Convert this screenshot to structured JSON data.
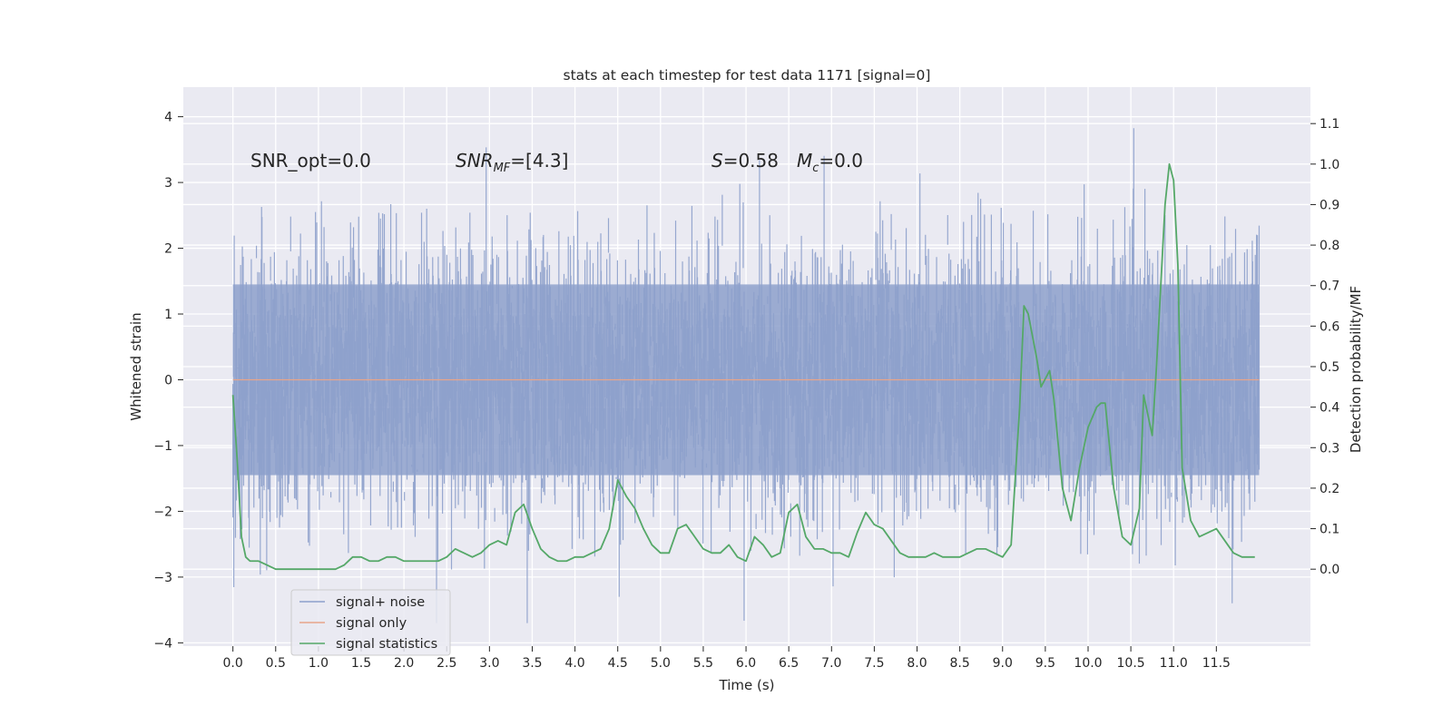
{
  "chart_data": {
    "type": "line",
    "title": "stats at each timestep for test data 1171 [signal=0]",
    "xlabel": "Time (s)",
    "ylabel_left": "Whitened strain",
    "ylabel_right": "Detection probability/MF",
    "xlim": [
      -0.58,
      12.6
    ],
    "ylim_left": [
      -4.05,
      4.45
    ],
    "ylim_right": [
      -0.19,
      1.19
    ],
    "x_ticks": [
      "0.0",
      "0.5",
      "1.0",
      "1.5",
      "2.0",
      "2.5",
      "3.0",
      "3.5",
      "4.0",
      "4.5",
      "5.0",
      "5.5",
      "6.0",
      "6.5",
      "7.0",
      "7.5",
      "8.0",
      "8.5",
      "9.0",
      "9.5",
      "10.0",
      "10.5",
      "11.0",
      "11.5"
    ],
    "y_ticks_left": [
      "4",
      "3",
      "2",
      "1",
      "0",
      "−1",
      "−2",
      "−3",
      "−4"
    ],
    "y_ticks_right": [
      "1.1",
      "1.0",
      "0.9",
      "0.8",
      "0.7",
      "0.6",
      "0.5",
      "0.4",
      "0.3",
      "0.2",
      "0.1",
      "0.0"
    ],
    "grid": true,
    "legend_position": "lower-left",
    "annotations": {
      "snr_opt": "SNR_opt=0.0",
      "snr_mf_main": "SNR",
      "snr_mf_sub": "MF",
      "snr_mf_val": "=[4.3]",
      "s_main": "S",
      "s_val": "=0.58",
      "mc_main": "M",
      "mc_sub": "c",
      "mc_val": "=0.0"
    },
    "series": [
      {
        "name": "signal+ noise",
        "color": "#8da0cb",
        "axis": "left",
        "kind": "noise",
        "x_range": [
          0.0,
          12.0
        ],
        "envelope_core": [
          -1.45,
          1.45
        ],
        "peak_range": [
          -3.7,
          4.1
        ]
      },
      {
        "name": "signal only",
        "color": "#e8a58a",
        "axis": "left",
        "x": [
          0.0,
          12.0
        ],
        "y": [
          0.0,
          0.0
        ]
      },
      {
        "name": "signal statistics",
        "color": "#55a868",
        "axis": "right",
        "x": [
          0.0,
          0.05,
          0.1,
          0.15,
          0.2,
          0.3,
          0.4,
          0.5,
          0.6,
          0.7,
          0.8,
          0.9,
          1.0,
          1.1,
          1.2,
          1.3,
          1.4,
          1.5,
          1.6,
          1.7,
          1.8,
          1.9,
          2.0,
          2.1,
          2.2,
          2.3,
          2.4,
          2.5,
          2.6,
          2.7,
          2.8,
          2.9,
          3.0,
          3.1,
          3.2,
          3.3,
          3.4,
          3.5,
          3.6,
          3.7,
          3.8,
          3.9,
          4.0,
          4.1,
          4.2,
          4.3,
          4.4,
          4.5,
          4.6,
          4.7,
          4.8,
          4.9,
          5.0,
          5.1,
          5.2,
          5.3,
          5.4,
          5.5,
          5.6,
          5.7,
          5.8,
          5.9,
          6.0,
          6.1,
          6.2,
          6.3,
          6.4,
          6.5,
          6.6,
          6.7,
          6.8,
          6.9,
          7.0,
          7.1,
          7.2,
          7.3,
          7.4,
          7.5,
          7.6,
          7.7,
          7.8,
          7.9,
          8.0,
          8.1,
          8.2,
          8.3,
          8.4,
          8.5,
          8.6,
          8.7,
          8.8,
          8.9,
          9.0,
          9.1,
          9.2,
          9.25,
          9.3,
          9.4,
          9.45,
          9.5,
          9.55,
          9.6,
          9.7,
          9.8,
          9.9,
          10.0,
          10.1,
          10.15,
          10.2,
          10.3,
          10.4,
          10.5,
          10.6,
          10.65,
          10.7,
          10.75,
          10.8,
          10.9,
          10.95,
          11.0,
          11.05,
          11.1,
          11.2,
          11.3,
          11.4,
          11.5,
          11.6,
          11.7,
          11.8,
          11.9,
          11.95
        ],
        "y": [
          0.43,
          0.27,
          0.08,
          0.03,
          0.02,
          0.02,
          0.01,
          0.0,
          0.0,
          0.0,
          0.0,
          0.0,
          0.0,
          0.0,
          0.0,
          0.01,
          0.03,
          0.03,
          0.02,
          0.02,
          0.03,
          0.03,
          0.02,
          0.02,
          0.02,
          0.02,
          0.02,
          0.03,
          0.05,
          0.04,
          0.03,
          0.04,
          0.06,
          0.07,
          0.06,
          0.14,
          0.16,
          0.1,
          0.05,
          0.03,
          0.02,
          0.02,
          0.03,
          0.03,
          0.04,
          0.05,
          0.1,
          0.22,
          0.18,
          0.15,
          0.1,
          0.06,
          0.04,
          0.04,
          0.1,
          0.11,
          0.08,
          0.05,
          0.04,
          0.04,
          0.06,
          0.03,
          0.02,
          0.08,
          0.06,
          0.03,
          0.04,
          0.14,
          0.16,
          0.08,
          0.05,
          0.05,
          0.04,
          0.04,
          0.03,
          0.09,
          0.14,
          0.11,
          0.1,
          0.07,
          0.04,
          0.03,
          0.03,
          0.03,
          0.04,
          0.03,
          0.03,
          0.03,
          0.04,
          0.05,
          0.05,
          0.04,
          0.03,
          0.06,
          0.4,
          0.65,
          0.63,
          0.52,
          0.45,
          0.47,
          0.49,
          0.42,
          0.2,
          0.12,
          0.25,
          0.35,
          0.4,
          0.41,
          0.41,
          0.2,
          0.08,
          0.06,
          0.15,
          0.43,
          0.38,
          0.33,
          0.5,
          0.9,
          1.0,
          0.96,
          0.75,
          0.25,
          0.12,
          0.08,
          0.09,
          0.1,
          0.07,
          0.04,
          0.03,
          0.03,
          0.03
        ]
      }
    ]
  }
}
